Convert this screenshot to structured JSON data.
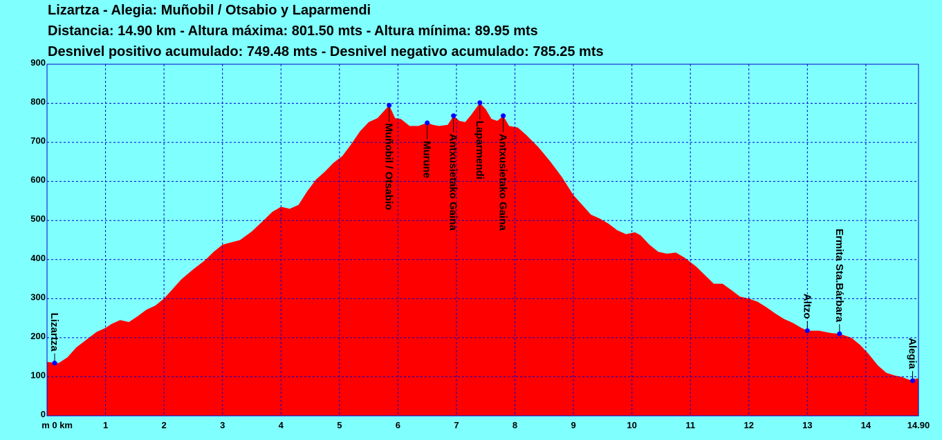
{
  "header": {
    "line1": "Lizartza - Alegia:  Muñobil / Otsabio y Laparmendi",
    "line2": "Distancia: 14.90 km - Altura máxima: 801.50 mts - Altura mínima: 89.95 mts",
    "line3": "Desnivel positivo acumulado: 749.48 mts - Desnivel negativo acumulado: 785.25 mts"
  },
  "colors": {
    "fill": "#ff0000",
    "background": "#80ffff",
    "grid": "#0000cc",
    "marker": "#0000ff"
  },
  "chart_data": {
    "type": "area",
    "title": "Lizartza - Alegia:  Muñobil / Otsabio y Laparmendi",
    "xlabel": "km",
    "ylabel": "m",
    "xlim": [
      0,
      14.9
    ],
    "ylim": [
      0,
      900
    ],
    "grid": true,
    "x_ticks": [
      "0",
      "1",
      "2",
      "3",
      "4",
      "5",
      "6",
      "7",
      "8",
      "9",
      "10",
      "11",
      "12",
      "13",
      "14",
      "14.90"
    ],
    "y_ticks": [
      "0",
      "100",
      "200",
      "300",
      "400",
      "500",
      "600",
      "700",
      "800",
      "900"
    ],
    "x_unit_label": "m 0 km",
    "profile": [
      [
        0.0,
        138
      ],
      [
        0.2,
        135
      ],
      [
        0.35,
        150
      ],
      [
        0.5,
        175
      ],
      [
        0.7,
        198
      ],
      [
        0.85,
        215
      ],
      [
        1.0,
        225
      ],
      [
        1.1,
        235
      ],
      [
        1.25,
        245
      ],
      [
        1.4,
        240
      ],
      [
        1.55,
        255
      ],
      [
        1.7,
        272
      ],
      [
        1.85,
        282
      ],
      [
        2.0,
        300
      ],
      [
        2.15,
        325
      ],
      [
        2.3,
        350
      ],
      [
        2.5,
        375
      ],
      [
        2.7,
        398
      ],
      [
        2.85,
        420
      ],
      [
        3.0,
        438
      ],
      [
        3.1,
        442
      ],
      [
        3.3,
        450
      ],
      [
        3.5,
        472
      ],
      [
        3.7,
        500
      ],
      [
        3.85,
        522
      ],
      [
        4.0,
        535
      ],
      [
        4.15,
        530
      ],
      [
        4.3,
        540
      ],
      [
        4.45,
        575
      ],
      [
        4.6,
        605
      ],
      [
        4.75,
        625
      ],
      [
        4.9,
        648
      ],
      [
        5.05,
        665
      ],
      [
        5.2,
        695
      ],
      [
        5.35,
        728
      ],
      [
        5.5,
        752
      ],
      [
        5.65,
        762
      ],
      [
        5.85,
        795
      ],
      [
        5.95,
        762
      ],
      [
        6.05,
        760
      ],
      [
        6.2,
        742
      ],
      [
        6.35,
        742
      ],
      [
        6.5,
        750
      ],
      [
        6.6,
        745
      ],
      [
        6.7,
        742
      ],
      [
        6.85,
        745
      ],
      [
        6.95,
        768
      ],
      [
        7.05,
        755
      ],
      [
        7.15,
        752
      ],
      [
        7.25,
        770
      ],
      [
        7.4,
        801
      ],
      [
        7.5,
        785
      ],
      [
        7.6,
        760
      ],
      [
        7.7,
        755
      ],
      [
        7.8,
        768
      ],
      [
        7.9,
        742
      ],
      [
        8.05,
        738
      ],
      [
        8.2,
        718
      ],
      [
        8.4,
        688
      ],
      [
        8.6,
        652
      ],
      [
        8.8,
        612
      ],
      [
        9.0,
        565
      ],
      [
        9.15,
        540
      ],
      [
        9.3,
        515
      ],
      [
        9.45,
        505
      ],
      [
        9.6,
        492
      ],
      [
        9.75,
        475
      ],
      [
        9.9,
        465
      ],
      [
        10.05,
        470
      ],
      [
        10.15,
        462
      ],
      [
        10.3,
        438
      ],
      [
        10.45,
        420
      ],
      [
        10.6,
        415
      ],
      [
        10.75,
        418
      ],
      [
        10.9,
        405
      ],
      [
        11.1,
        382
      ],
      [
        11.25,
        360
      ],
      [
        11.4,
        338
      ],
      [
        11.55,
        338
      ],
      [
        11.7,
        322
      ],
      [
        11.85,
        305
      ],
      [
        12.0,
        300
      ],
      [
        12.15,
        292
      ],
      [
        12.3,
        278
      ],
      [
        12.45,
        262
      ],
      [
        12.6,
        248
      ],
      [
        12.75,
        238
      ],
      [
        12.9,
        225
      ],
      [
        13.0,
        218
      ],
      [
        13.2,
        218
      ],
      [
        13.4,
        212
      ],
      [
        13.55,
        210
      ],
      [
        13.75,
        200
      ],
      [
        13.9,
        182
      ],
      [
        14.05,
        158
      ],
      [
        14.2,
        130
      ],
      [
        14.35,
        110
      ],
      [
        14.5,
        103
      ],
      [
        14.6,
        100
      ],
      [
        14.75,
        92
      ],
      [
        14.9,
        96
      ]
    ],
    "waypoints": [
      {
        "name": "Lizartza",
        "km": 0.13,
        "alt": 135
      },
      {
        "name": "Muñobil / Otsabio",
        "km": 5.85,
        "alt": 795
      },
      {
        "name": "Murune",
        "km": 6.5,
        "alt": 750
      },
      {
        "name": "Antxusietako Gaina",
        "km": 6.95,
        "alt": 768
      },
      {
        "name": "Laparmendi",
        "km": 7.4,
        "alt": 801.5
      },
      {
        "name": "Antxusietako Gaina",
        "km": 7.8,
        "alt": 768
      },
      {
        "name": "Altzo",
        "km": 13.0,
        "alt": 218
      },
      {
        "name": "Ermita Sta.Bárbara",
        "km": 13.55,
        "alt": 210
      },
      {
        "name": "Alegia",
        "km": 14.8,
        "alt": 90
      }
    ]
  }
}
